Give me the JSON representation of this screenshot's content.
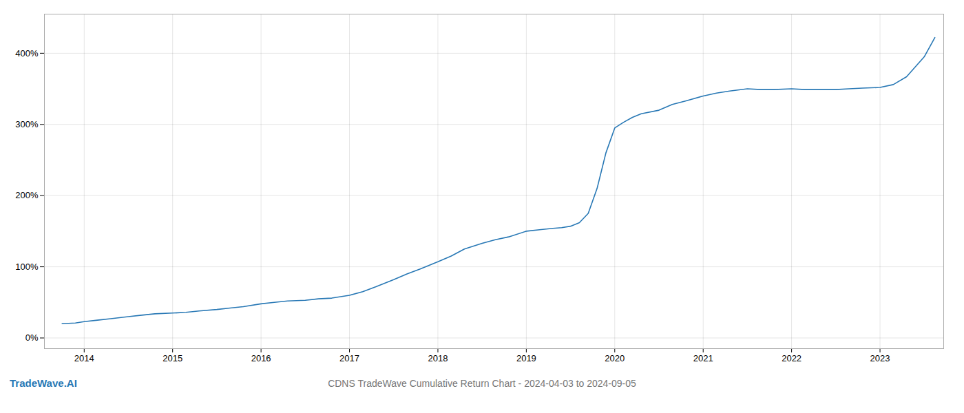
{
  "chart_data": {
    "type": "line",
    "title": "CDNS TradeWave Cumulative Return Chart - 2024-04-03 to 2024-09-05",
    "annotations": [
      "TradeWave.AI"
    ],
    "color": "#2878b5",
    "grid": true,
    "x": [
      2013.75,
      2013.9,
      2014.0,
      2014.15,
      2014.3,
      2014.5,
      2014.65,
      2014.8,
      2015.0,
      2015.15,
      2015.3,
      2015.5,
      2015.65,
      2015.8,
      2016.0,
      2016.15,
      2016.3,
      2016.5,
      2016.65,
      2016.8,
      2017.0,
      2017.15,
      2017.3,
      2017.5,
      2017.65,
      2017.8,
      2018.0,
      2018.15,
      2018.3,
      2018.5,
      2018.65,
      2018.8,
      2019.0,
      2019.15,
      2019.3,
      2019.4,
      2019.5,
      2019.6,
      2019.7,
      2019.8,
      2019.9,
      2020.0,
      2020.1,
      2020.2,
      2020.3,
      2020.5,
      2020.65,
      2020.8,
      2021.0,
      2021.15,
      2021.3,
      2021.5,
      2021.65,
      2021.8,
      2022.0,
      2022.15,
      2022.3,
      2022.5,
      2022.65,
      2022.8,
      2023.0,
      2023.15,
      2023.3,
      2023.5,
      2023.62
    ],
    "values": [
      20,
      21,
      23,
      25,
      27,
      30,
      32,
      34,
      35,
      36,
      38,
      40,
      42,
      44,
      48,
      50,
      52,
      53,
      55,
      56,
      60,
      65,
      72,
      82,
      90,
      97,
      107,
      115,
      125,
      133,
      138,
      142,
      150,
      152,
      154,
      155,
      157,
      162,
      175,
      210,
      260,
      295,
      303,
      310,
      315,
      320,
      328,
      333,
      340,
      344,
      347,
      350,
      349,
      349,
      350,
      349,
      349,
      349,
      350,
      351,
      352,
      356,
      367,
      395,
      422
    ],
    "xlim": [
      2013.55,
      2023.72
    ],
    "xticks": [
      2014,
      2015,
      2016,
      2017,
      2018,
      2019,
      2020,
      2021,
      2022,
      2023
    ],
    "ylim": [
      -15,
      455
    ],
    "yticks": [
      {
        "value": 0,
        "label": "0%"
      },
      {
        "value": 100,
        "label": "100%"
      },
      {
        "value": 200,
        "label": "200%"
      },
      {
        "value": 300,
        "label": "300%"
      },
      {
        "value": 400,
        "label": "400%"
      }
    ]
  }
}
